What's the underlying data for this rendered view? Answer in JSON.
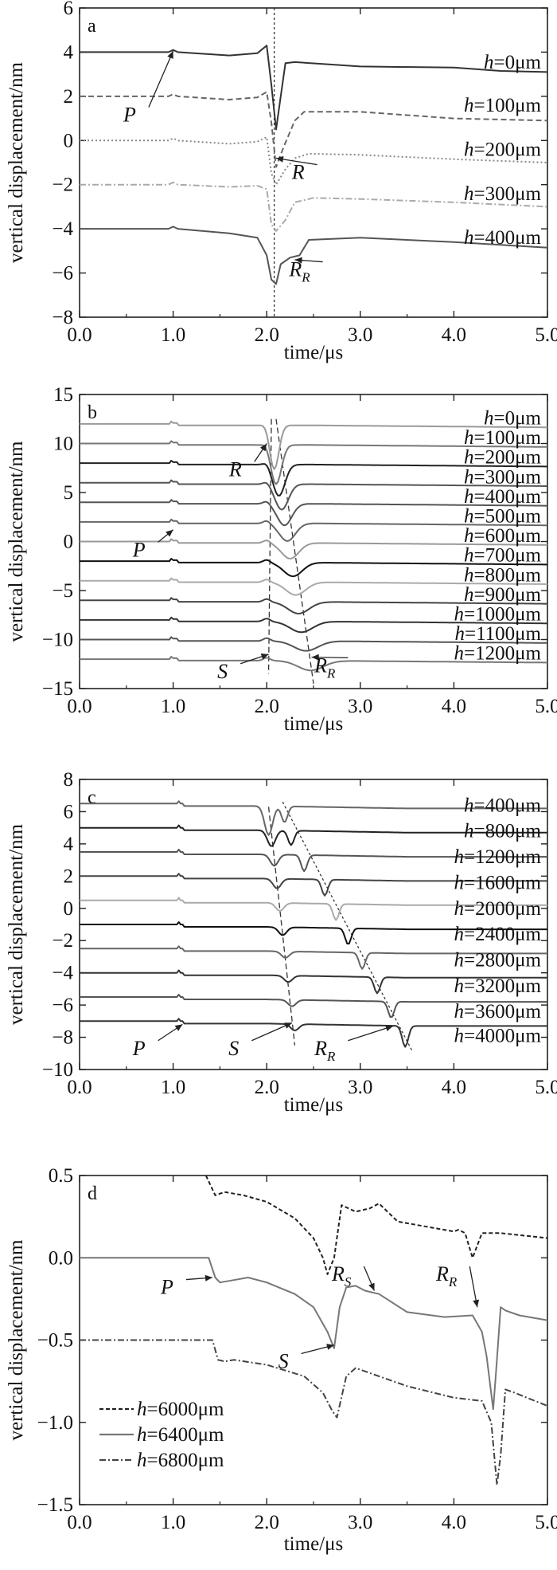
{
  "chart_data": [
    {
      "panel": "a",
      "type": "line",
      "xlabel": "time/μs",
      "ylabel": "vertical displacement/nm",
      "xlim": [
        0,
        5
      ],
      "ylim": [
        -8,
        6
      ],
      "xticks": [
        "0.0",
        "1.0",
        "2.0",
        "3.0",
        "4.0",
        "5.0"
      ],
      "yticks": [
        "6",
        "4",
        "2",
        "0",
        "−2",
        "−4",
        "−6",
        "−8"
      ],
      "ytick_values": [
        6,
        4,
        2,
        0,
        -2,
        -4,
        -6,
        -8
      ],
      "series": [
        {
          "name": "h=0μm",
          "label_prefix": "h",
          "label_rest": "=0μm",
          "label_y": 3.55,
          "color": "#333333",
          "dash": "",
          "x": [
            0,
            0.95,
            1.0,
            1.05,
            1.6,
            1.9,
            2.0,
            2.05,
            2.1,
            2.15,
            2.2,
            2.3,
            3.0,
            4.0,
            4.5,
            5.0
          ],
          "y": [
            4.0,
            4.0,
            4.1,
            4.0,
            3.85,
            3.95,
            4.3,
            2.5,
            0.5,
            2.0,
            3.5,
            3.55,
            3.35,
            3.3,
            3.15,
            3.1
          ]
        },
        {
          "name": "h=100μm",
          "label_prefix": "h",
          "label_rest": "=100μm",
          "label_y": 1.6,
          "color": "#666666",
          "dash": "7,4",
          "x": [
            0,
            0.95,
            1.0,
            1.05,
            1.6,
            1.9,
            2.0,
            2.05,
            2.1,
            2.18,
            2.3,
            2.4,
            3.0,
            4.0,
            5.0
          ],
          "y": [
            2.0,
            2.0,
            2.1,
            2.0,
            1.85,
            1.95,
            2.2,
            0.8,
            -1.2,
            -0.3,
            0.9,
            1.3,
            1.3,
            1.0,
            0.9
          ]
        },
        {
          "name": "h=200μm",
          "label_prefix": "h",
          "label_rest": "=200μm",
          "label_y": -0.4,
          "color": "#888888",
          "dash": "2,3",
          "x": [
            0,
            0.95,
            1.0,
            1.05,
            1.6,
            1.9,
            2.0,
            2.05,
            2.1,
            2.2,
            2.3,
            2.45,
            3.0,
            4.0,
            5.0
          ],
          "y": [
            0.0,
            0.0,
            0.1,
            0.0,
            -0.15,
            -0.05,
            0.15,
            -1.5,
            -2.0,
            -1.3,
            -0.8,
            -0.6,
            -0.65,
            -0.85,
            -1.0
          ]
        },
        {
          "name": "h=300μm",
          "label_prefix": "h",
          "label_rest": "=300μm",
          "label_y": -2.4,
          "color": "#aaaaaa",
          "dash": "8,3,2,3",
          "x": [
            0,
            0.95,
            1.0,
            1.05,
            1.6,
            1.9,
            2.0,
            2.05,
            2.1,
            2.2,
            2.3,
            2.5,
            3.0,
            4.0,
            5.0
          ],
          "y": [
            -2.0,
            -2.0,
            -1.9,
            -2.0,
            -2.1,
            -2.05,
            -2.2,
            -3.8,
            -4.1,
            -3.6,
            -2.8,
            -2.6,
            -2.65,
            -2.8,
            -3.0
          ]
        },
        {
          "name": "h=400μm",
          "label_prefix": "h",
          "label_rest": "=400μm",
          "label_y": -4.4,
          "color": "#555555",
          "dash": "",
          "x": [
            0,
            0.95,
            1.0,
            1.05,
            1.6,
            1.9,
            2.0,
            2.05,
            2.1,
            2.15,
            2.25,
            2.35,
            2.45,
            3.0,
            4.0,
            5.0
          ],
          "y": [
            -4.0,
            -4.0,
            -3.9,
            -4.0,
            -4.2,
            -4.4,
            -5.2,
            -6.3,
            -6.5,
            -5.6,
            -5.3,
            -5.2,
            -4.5,
            -4.4,
            -4.6,
            -4.85
          ]
        }
      ],
      "annotations": [
        {
          "text": "P",
          "sub": "",
          "x": 0.62,
          "y": 1.0,
          "ax": 1.0,
          "ay": 4.05
        },
        {
          "text": "R",
          "sub": "",
          "x": 2.42,
          "y": -1.6,
          "ax": 2.1,
          "ay": -0.8
        },
        {
          "text": "R",
          "sub": "R",
          "x": 2.48,
          "y": -6.0,
          "ax": 2.3,
          "ay": -5.4
        }
      ],
      "guides": [
        {
          "x1": 2.08,
          "y1": 6,
          "x2": 2.08,
          "y2": -8,
          "dash": "3,3"
        }
      ]
    },
    {
      "panel": "b",
      "type": "line",
      "xlabel": "time/μs",
      "ylabel": "vertical displacement/nm",
      "xlim": [
        0,
        5
      ],
      "ylim": [
        -15,
        15
      ],
      "xticks": [
        "0.0",
        "1.0",
        "2.0",
        "3.0",
        "4.0",
        "5.0"
      ],
      "yticks": [
        "15",
        "10",
        "5",
        "0",
        "−5",
        "−10",
        "−15"
      ],
      "ytick_values": [
        15,
        10,
        5,
        0,
        -5,
        -10,
        -15
      ],
      "series": [
        {
          "name": "h=0μm",
          "label_prefix": "h",
          "label_rest": "=0μm",
          "label_y": 12.6,
          "color": "#9a9a9a",
          "dash": "",
          "offset": 12,
          "dip_w": 0.07,
          "dip_t": 2.08,
          "dip_a": 4.5
        },
        {
          "name": "h=100μm",
          "label_prefix": "h",
          "label_rest": "=100μm",
          "label_y": 10.6,
          "color": "#777777",
          "dash": "",
          "offset": 10,
          "dip_w": 0.08,
          "dip_t": 2.1,
          "dip_a": 4.0
        },
        {
          "name": "h=200μm",
          "label_prefix": "h",
          "label_rest": "=200μm",
          "label_y": 8.6,
          "color": "#222222",
          "dash": "",
          "offset": 8,
          "dip_w": 0.09,
          "dip_t": 2.13,
          "dip_a": 3.2
        },
        {
          "name": "h=300μm",
          "label_prefix": "h",
          "label_rest": "=300μm",
          "label_y": 6.6,
          "color": "#555555",
          "dash": "",
          "offset": 6,
          "dip_w": 0.1,
          "dip_t": 2.16,
          "dip_a": 2.6
        },
        {
          "name": "h=400μm",
          "label_prefix": "h",
          "label_rest": "=400μm",
          "label_y": 4.6,
          "color": "#555555",
          "dash": "",
          "offset": 4,
          "dip_w": 0.11,
          "dip_t": 2.19,
          "dip_a": 2.2
        },
        {
          "name": "h=500μm",
          "label_prefix": "h",
          "label_rest": "=500μm",
          "label_y": 2.6,
          "color": "#666666",
          "dash": "",
          "offset": 2,
          "dip_w": 0.12,
          "dip_t": 2.22,
          "dip_a": 1.8
        },
        {
          "name": "h=600μm",
          "label_prefix": "h",
          "label_rest": "=600μm",
          "label_y": 0.6,
          "color": "#999999",
          "dash": "",
          "offset": 0,
          "dip_w": 0.13,
          "dip_t": 2.25,
          "dip_a": 1.6
        },
        {
          "name": "h=700μm",
          "label_prefix": "h",
          "label_rest": "=700μm",
          "label_y": -1.4,
          "color": "#111111",
          "dash": "",
          "offset": -2,
          "dip_w": 0.14,
          "dip_t": 2.28,
          "dip_a": 1.4
        },
        {
          "name": "h=800μm",
          "label_prefix": "h",
          "label_rest": "=800μm",
          "label_y": -3.4,
          "color": "#aaaaaa",
          "dash": "",
          "offset": -4,
          "dip_w": 0.15,
          "dip_t": 2.31,
          "dip_a": 1.3
        },
        {
          "name": "h=900μm",
          "label_prefix": "h",
          "label_rest": "=900μm",
          "label_y": -5.4,
          "color": "#444444",
          "dash": "",
          "offset": -6,
          "dip_w": 0.16,
          "dip_t": 2.34,
          "dip_a": 1.2
        },
        {
          "name": "h=1000μm",
          "label_prefix": "h",
          "label_rest": "=1000μm",
          "label_y": -7.4,
          "color": "#333333",
          "dash": "",
          "offset": -8,
          "dip_w": 0.17,
          "dip_t": 2.37,
          "dip_a": 1.1
        },
        {
          "name": "h=1100μm",
          "label_prefix": "h",
          "label_rest": "=1100μm",
          "label_y": -9.4,
          "color": "#555555",
          "dash": "",
          "offset": -10,
          "dip_w": 0.18,
          "dip_t": 2.42,
          "dip_a": 1.0
        },
        {
          "name": "h=1200μm",
          "label_prefix": "h",
          "label_rest": "=1200μm",
          "label_y": -11.4,
          "color": "#777777",
          "dash": "",
          "offset": -12,
          "dip_w": 0.19,
          "dip_t": 2.47,
          "dip_a": 1.0
        }
      ],
      "annotations": [
        {
          "text": "R",
          "sub": "",
          "x": 1.75,
          "y": 7.0,
          "ax": 2.0,
          "ay": 10.0
        },
        {
          "text": "P",
          "sub": "",
          "x": 0.72,
          "y": -1.2,
          "ax": 1.0,
          "ay": 1.2
        },
        {
          "text": "S",
          "sub": "",
          "x": 1.6,
          "y": -13.6,
          "ax": 2.02,
          "ay": -11.5
        },
        {
          "text": "R",
          "sub": "R",
          "x": 2.75,
          "y": -13.0,
          "ax": 2.48,
          "ay": -11.8
        }
      ],
      "guides": [
        {
          "x1": 2.05,
          "y1": 12.5,
          "x2": 2.02,
          "y2": -13.5,
          "dash": "7,4"
        },
        {
          "x1": 2.1,
          "y1": 12.5,
          "x2": 2.5,
          "y2": -14.5,
          "dash": "7,4"
        }
      ]
    },
    {
      "panel": "c",
      "type": "line",
      "xlabel": "time/μs",
      "ylabel": "vertical displacement/nm",
      "xlim": [
        0,
        5
      ],
      "ylim": [
        -10,
        8
      ],
      "xticks": [
        "0.0",
        "1.0",
        "2.0",
        "3.0",
        "4.0",
        "5.0"
      ],
      "yticks": [
        "8",
        "6",
        "4",
        "2",
        "0",
        "−2",
        "−4",
        "−6",
        "−8",
        "−10"
      ],
      "ytick_values": [
        8,
        6,
        4,
        2,
        0,
        -2,
        -4,
        -6,
        -8,
        -10
      ],
      "series": [
        {
          "name": "h=400μm",
          "label_prefix": "h",
          "label_rest": "=400μm",
          "label_y": 6.4,
          "color": "#666666",
          "offset": 6.5,
          "t_s": 2.02,
          "a_s": 1.8,
          "t_r": 2.19,
          "a_r": 1.0
        },
        {
          "name": "h=800μm",
          "label_prefix": "h",
          "label_rest": "=800μm",
          "label_y": 4.8,
          "color": "#222222",
          "offset": 5.0,
          "t_s": 2.05,
          "a_s": 1.0,
          "t_r": 2.26,
          "a_r": 0.9
        },
        {
          "name": "h=1200μm",
          "label_prefix": "h",
          "label_rest": "=1200μm",
          "label_y": 3.2,
          "color": "#555555",
          "offset": 3.5,
          "t_s": 2.08,
          "a_s": 0.7,
          "t_r": 2.4,
          "a_r": 1.0
        },
        {
          "name": "h=1600μm",
          "label_prefix": "h",
          "label_rest": "=1600μm",
          "label_y": 1.6,
          "color": "#444444",
          "offset": 2.0,
          "t_s": 2.11,
          "a_s": 0.6,
          "t_r": 2.62,
          "a_r": 1.0
        },
        {
          "name": "h=2000μm",
          "label_prefix": "h",
          "label_rest": "=2000μm",
          "label_y": 0.0,
          "color": "#aaaaaa",
          "offset": 0.5,
          "t_s": 2.14,
          "a_s": 0.5,
          "t_r": 2.74,
          "a_r": 1.0
        },
        {
          "name": "h=2400μm",
          "label_prefix": "h",
          "label_rest": "=2400μm",
          "label_y": -1.6,
          "color": "#111111",
          "offset": -1.0,
          "t_s": 2.17,
          "a_s": 0.5,
          "t_r": 2.87,
          "a_r": 1.0
        },
        {
          "name": "h=2800μm",
          "label_prefix": "h",
          "label_rest": "=2800μm",
          "label_y": -3.2,
          "color": "#666666",
          "offset": -2.5,
          "t_s": 2.2,
          "a_s": 0.4,
          "t_r": 3.02,
          "a_r": 1.0
        },
        {
          "name": "h=3200μm",
          "label_prefix": "h",
          "label_rest": "=3200μm",
          "label_y": -4.8,
          "color": "#333333",
          "offset": -4.0,
          "t_s": 2.23,
          "a_s": 0.4,
          "t_r": 3.18,
          "a_r": 1.0
        },
        {
          "name": "h=3600μm",
          "label_prefix": "h",
          "label_rest": "=3600μm",
          "label_y": -6.4,
          "color": "#555555",
          "offset": -5.5,
          "t_s": 2.27,
          "a_s": 0.4,
          "t_r": 3.33,
          "a_r": 1.0
        },
        {
          "name": "h=4000μm",
          "label_prefix": "h",
          "label_rest": "=4000μm",
          "label_y": -7.9,
          "color": "#333333",
          "offset": -7.0,
          "t_s": 2.3,
          "a_s": 0.4,
          "t_r": 3.48,
          "a_r": 1.3
        }
      ],
      "annotations": [
        {
          "text": "P",
          "sub": "",
          "x": 0.72,
          "y": -8.9,
          "ax": 1.1,
          "ay": -7.2
        },
        {
          "text": "S",
          "sub": "",
          "x": 1.72,
          "y": -8.9,
          "ax": 2.27,
          "ay": -7.1
        },
        {
          "text": "R",
          "sub": "R",
          "x": 2.75,
          "y": -8.9,
          "ax": 3.35,
          "ay": -7.3
        }
      ],
      "guides": [
        {
          "x1": 2.02,
          "y1": 6.3,
          "x2": 2.3,
          "y2": -8.5,
          "dash": "7,4"
        },
        {
          "x1": 2.17,
          "y1": 6.6,
          "x2": 3.55,
          "y2": -8.8,
          "dash": "3,3"
        }
      ]
    },
    {
      "panel": "d",
      "type": "line",
      "xlabel": "time/μs",
      "ylabel": "vertical displacement/nm",
      "xlim": [
        0,
        5
      ],
      "ylim": [
        -1.5,
        0.5
      ],
      "xticks": [
        "0.0",
        "1.0",
        "2.0",
        "3.0",
        "4.0",
        "5.0"
      ],
      "yticks": [
        "0.5",
        "0.0",
        "−0.5",
        "−1.0",
        "−1.5"
      ],
      "ytick_values": [
        0.5,
        0.0,
        -0.5,
        -1.0,
        -1.5
      ],
      "legend": {
        "position": "bottom-left"
      },
      "series": [
        {
          "name": "h=6000μm",
          "label_prefix": "h",
          "label_rest": "=6000μm",
          "color": "#222222",
          "dash": "5,3",
          "x": [
            1.35,
            1.45,
            1.55,
            1.75,
            2.0,
            2.3,
            2.5,
            2.6,
            2.65,
            2.72,
            2.8,
            2.95,
            3.1,
            3.2,
            3.4,
            3.8,
            4.0,
            4.05,
            4.12,
            4.2,
            4.3,
            4.5,
            5.0
          ],
          "y": [
            0.5,
            0.38,
            0.4,
            0.38,
            0.34,
            0.24,
            0.12,
            0.0,
            -0.1,
            0.0,
            0.32,
            0.28,
            0.3,
            0.33,
            0.22,
            0.18,
            0.16,
            0.17,
            0.15,
            0.0,
            0.15,
            0.15,
            0.12
          ]
        },
        {
          "name": "h=6400μm",
          "label_prefix": "h",
          "label_rest": "=6400μm",
          "color": "#777777",
          "dash": "",
          "x": [
            0,
            1.38,
            1.45,
            1.5,
            1.6,
            1.8,
            2.0,
            2.3,
            2.5,
            2.65,
            2.72,
            2.78,
            2.85,
            2.95,
            3.05,
            3.2,
            3.5,
            3.9,
            4.2,
            4.3,
            4.35,
            4.42,
            4.45,
            4.5,
            4.55,
            4.7,
            5.0
          ],
          "y": [
            0.0,
            0.0,
            -0.12,
            -0.15,
            -0.14,
            -0.12,
            -0.15,
            -0.22,
            -0.3,
            -0.45,
            -0.55,
            -0.3,
            -0.18,
            -0.17,
            -0.2,
            -0.22,
            -0.33,
            -0.36,
            -0.35,
            -0.45,
            -0.6,
            -0.92,
            -0.7,
            -0.3,
            -0.32,
            -0.35,
            -0.38
          ]
        },
        {
          "name": "h=6800μm",
          "label_prefix": "h",
          "label_rest": "=6800μm",
          "color": "#444444",
          "dash": "8,3,2,3",
          "x": [
            0,
            1.42,
            1.48,
            1.55,
            1.65,
            2.0,
            2.4,
            2.6,
            2.7,
            2.75,
            2.85,
            2.95,
            3.1,
            3.5,
            4.0,
            4.3,
            4.4,
            4.46,
            4.5,
            4.55,
            4.65,
            5.0
          ],
          "y": [
            -0.5,
            -0.5,
            -0.62,
            -0.63,
            -0.62,
            -0.65,
            -0.72,
            -0.82,
            -0.93,
            -0.97,
            -0.72,
            -0.67,
            -0.7,
            -0.78,
            -0.85,
            -0.87,
            -1.0,
            -1.38,
            -1.2,
            -0.8,
            -0.82,
            -0.9
          ]
        }
      ],
      "annotations": [
        {
          "text": "P",
          "sub": "",
          "x": 1.02,
          "y": -0.2,
          "ax": 1.42,
          "ay": -0.12
        },
        {
          "text": "S",
          "sub": "",
          "x": 2.25,
          "y": -0.65,
          "ax": 2.72,
          "ay": -0.53
        },
        {
          "text": "R",
          "sub": "S",
          "x": 2.92,
          "y": -0.12,
          "ax": 3.15,
          "ay": -0.2
        },
        {
          "text": "R",
          "sub": "R",
          "x": 4.05,
          "y": -0.12,
          "ax": 4.25,
          "ay": -0.3
        }
      ],
      "guides": []
    }
  ]
}
